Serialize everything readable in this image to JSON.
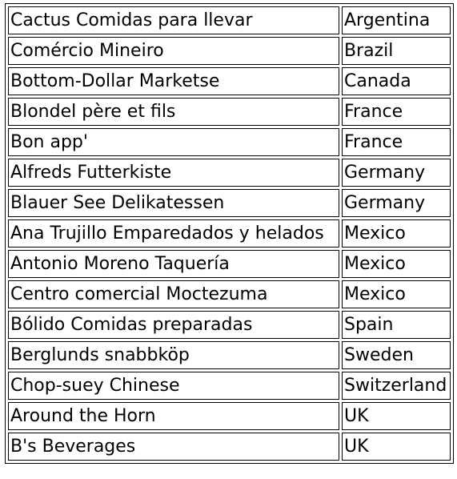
{
  "table": {
    "rows": [
      {
        "name": "Cactus Comidas para llevar",
        "country": "Argentina"
      },
      {
        "name": "Comércio Mineiro",
        "country": "Brazil"
      },
      {
        "name": "Bottom-Dollar Marketse",
        "country": "Canada"
      },
      {
        "name": "Blondel père et fils",
        "country": "France"
      },
      {
        "name": "Bon app'",
        "country": "France"
      },
      {
        "name": "Alfreds Futterkiste",
        "country": "Germany"
      },
      {
        "name": "Blauer See Delikatessen",
        "country": "Germany"
      },
      {
        "name": "Ana Trujillo Emparedados y helados",
        "country": "Mexico"
      },
      {
        "name": "Antonio Moreno Taquería",
        "country": "Mexico"
      },
      {
        "name": "Centro comercial Moctezuma",
        "country": "Mexico"
      },
      {
        "name": "Bólido Comidas preparadas",
        "country": "Spain"
      },
      {
        "name": "Berglunds snabbköp",
        "country": "Sweden"
      },
      {
        "name": "Chop-suey Chinese",
        "country": "Switzerland"
      },
      {
        "name": "Around the Horn",
        "country": "UK"
      },
      {
        "name": "B's Beverages",
        "country": "UK"
      }
    ]
  }
}
